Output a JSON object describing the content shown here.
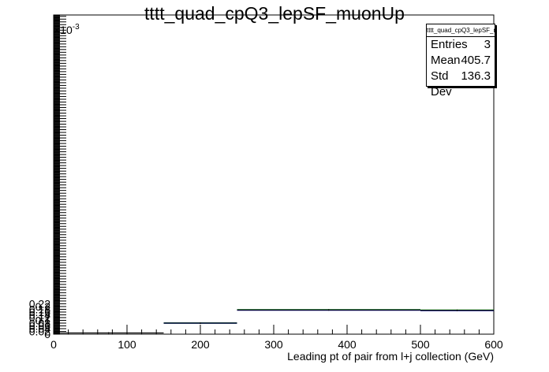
{
  "title": "tttt_quad_cpQ3_lepSF_muonUp",
  "stats": {
    "name": "tttt_quad_cpQ3_lepSF_muonUp",
    "rows": [
      {
        "label": "Entries",
        "value": "3"
      },
      {
        "label": "Mean",
        "value": "405.7"
      },
      {
        "label": "Std Dev",
        "value": "136.3"
      }
    ]
  },
  "chart_data": {
    "type": "histogram",
    "title": "tttt_quad_cpQ3_lepSF_muonUp",
    "xlabel": "Leading pt of pair from l+j collection (GeV)",
    "ylabel": "",
    "y_exponent_label": "×10",
    "y_exponent": "-3",
    "xlim": [
      0,
      600
    ],
    "ylim": [
      0,
      0.00231
    ],
    "x_ticks": [
      0,
      100,
      200,
      300,
      400,
      500,
      600
    ],
    "y_ticks": [
      0,
      0.02,
      0.04,
      0.06,
      0.08,
      0.1,
      0.12,
      0.14,
      0.16,
      0.18,
      0.2,
      0.22
    ],
    "bins": [
      {
        "x0": 0,
        "x1": 150,
        "value": 9e-06
      },
      {
        "x0": 150,
        "x1": 250,
        "value": 8.02e-05
      },
      {
        "x0": 250,
        "x1": 500,
        "value": 0.0001755
      },
      {
        "x0": 500,
        "x1": 600,
        "value": 0.0001725
      }
    ],
    "variation_bands": [
      {
        "x0": 150,
        "x1": 250,
        "upper": 8.07e-05,
        "lower": 7.97e-05
      },
      {
        "x0": 250,
        "x1": 500,
        "upper": 0.000177,
        "lower": 0.000174
      },
      {
        "x0": 500,
        "x1": 600,
        "upper": 0.000174,
        "lower": 0.000171
      }
    ],
    "colors": {
      "nominal": "#000000",
      "up": "#00cc00",
      "down": "#0000cc"
    },
    "grid": false,
    "legend": "top-right"
  }
}
